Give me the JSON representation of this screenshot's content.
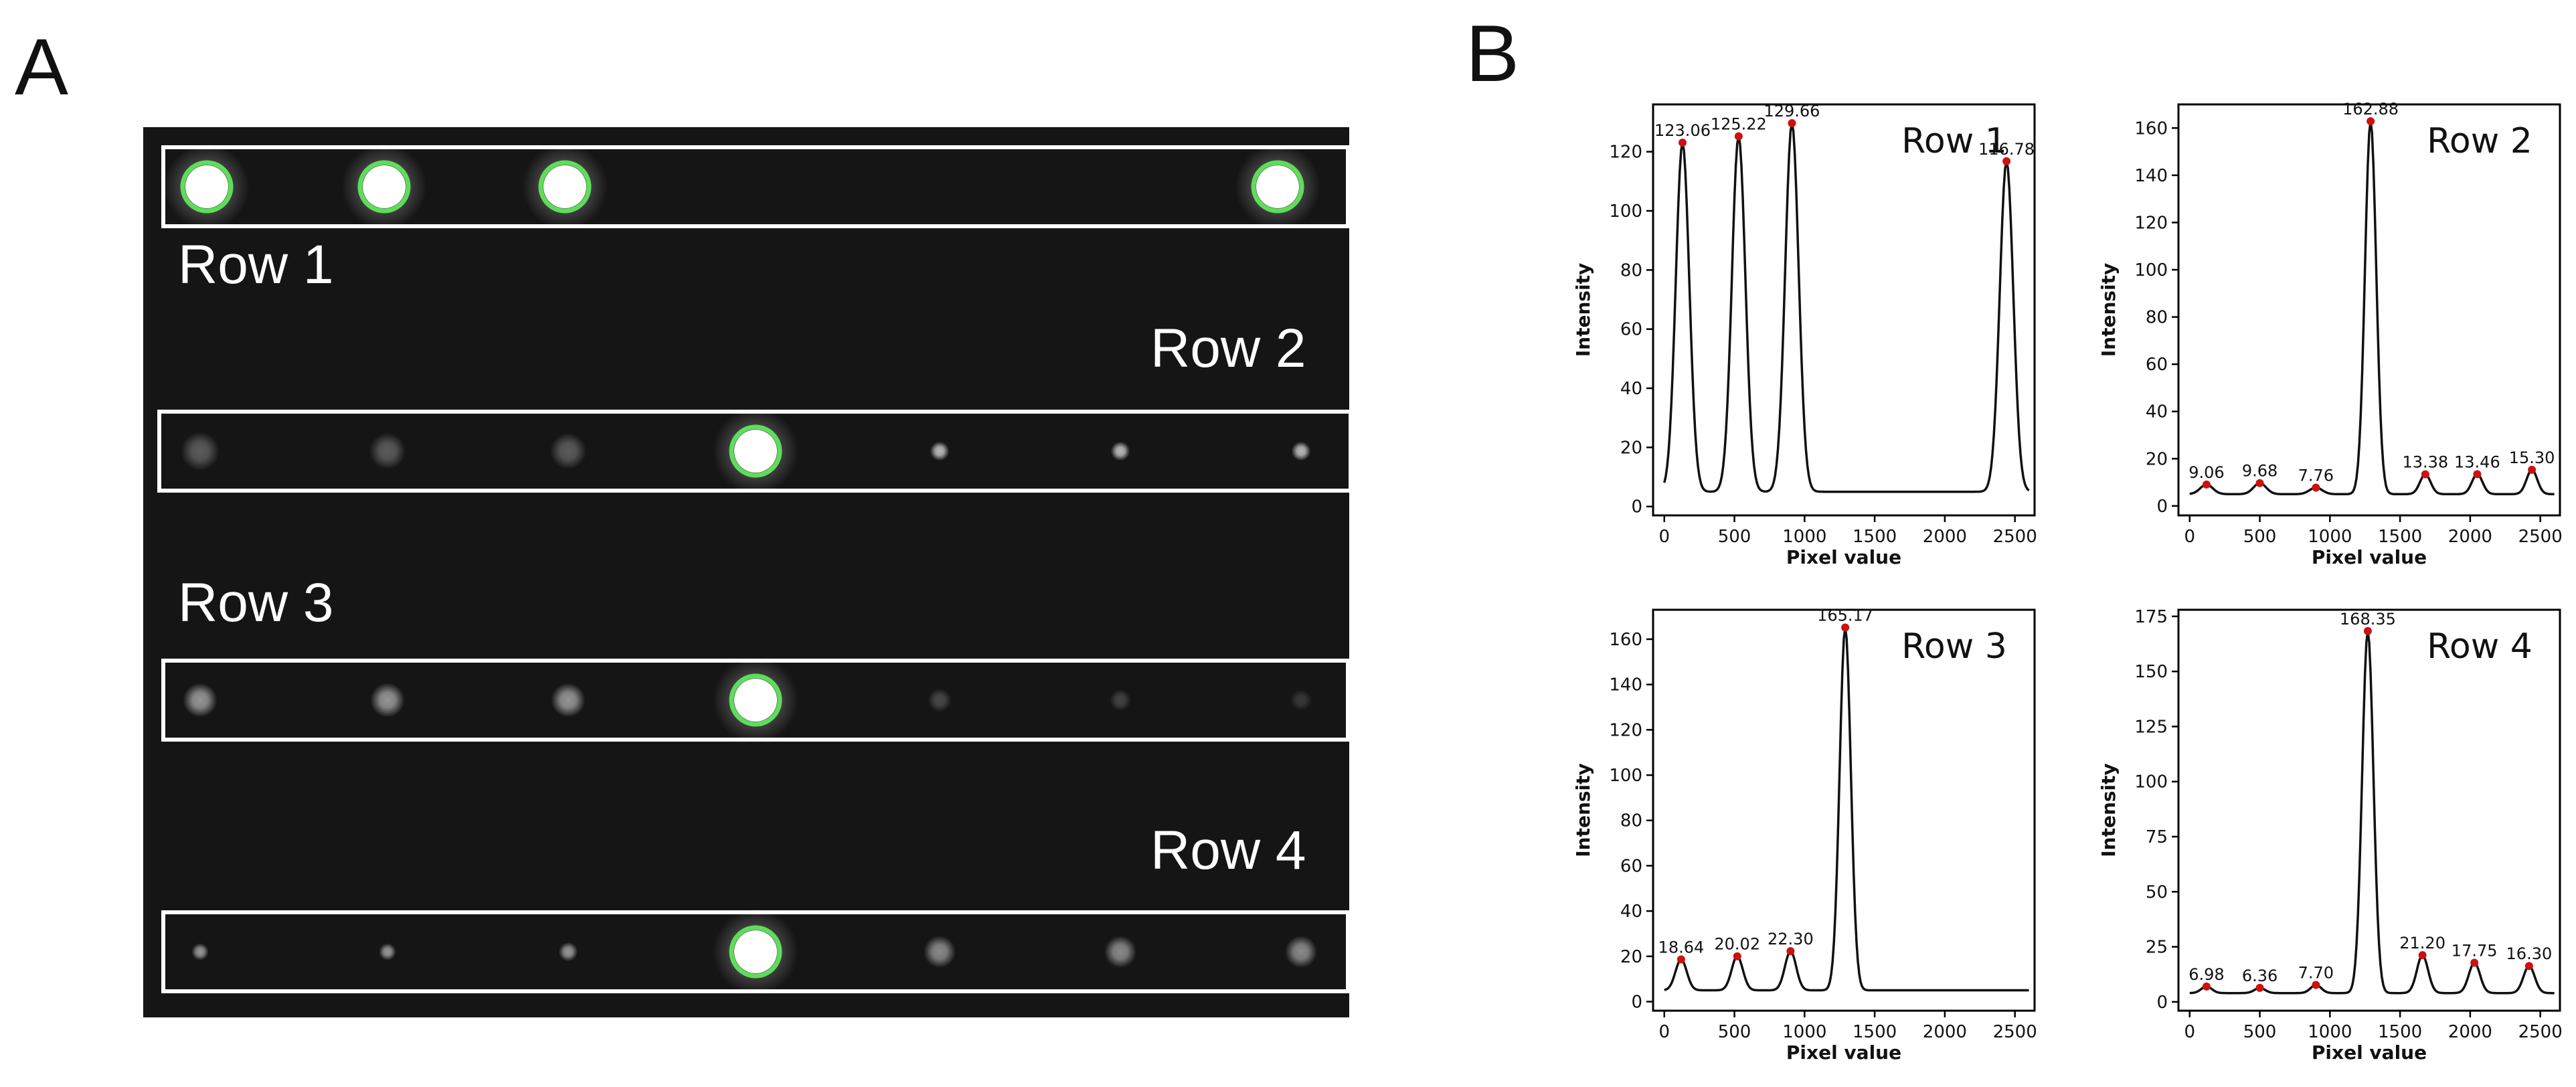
{
  "figure": {
    "panel_a_letter": "A",
    "panel_b_letter": "B"
  },
  "colors": {
    "blot_background": "#151515",
    "row_box": "#ffffff",
    "detected_ring": "#5fdc5a",
    "peak_marker": "#cc1111",
    "line": "#111111"
  },
  "blot": {
    "rows": [
      {
        "label": "Row 1",
        "spots": [
          {
            "intensity": 1.0,
            "size": 1.0,
            "detected": true
          },
          {
            "intensity": 1.0,
            "size": 1.0,
            "detected": true
          },
          {
            "intensity": 1.0,
            "size": 1.0,
            "detected": true
          },
          {
            "intensity": 1.0,
            "size": 1.0,
            "detected": true
          }
        ]
      },
      {
        "label": "Row 2",
        "spots": [
          {
            "intensity": 0.3,
            "size": 0.9,
            "detected": false
          },
          {
            "intensity": 0.3,
            "size": 0.85,
            "detected": false
          },
          {
            "intensity": 0.3,
            "size": 0.85,
            "detected": false
          },
          {
            "intensity": 1.0,
            "size": 1.0,
            "detected": true
          },
          {
            "intensity": 0.7,
            "size": 0.45,
            "detected": false
          },
          {
            "intensity": 0.7,
            "size": 0.45,
            "detected": false
          },
          {
            "intensity": 0.7,
            "size": 0.45,
            "detected": false
          }
        ]
      },
      {
        "label": "Row 3",
        "spots": [
          {
            "intensity": 0.55,
            "size": 0.8,
            "detected": false
          },
          {
            "intensity": 0.55,
            "size": 0.8,
            "detected": false
          },
          {
            "intensity": 0.55,
            "size": 0.8,
            "detected": false
          },
          {
            "intensity": 1.0,
            "size": 1.0,
            "detected": true
          },
          {
            "intensity": 0.22,
            "size": 0.55,
            "detected": false
          },
          {
            "intensity": 0.2,
            "size": 0.5,
            "detected": false
          },
          {
            "intensity": 0.15,
            "size": 0.5,
            "detected": false
          }
        ]
      },
      {
        "label": "Row 4",
        "spots": [
          {
            "intensity": 0.55,
            "size": 0.4,
            "detected": false
          },
          {
            "intensity": 0.55,
            "size": 0.4,
            "detected": false
          },
          {
            "intensity": 0.55,
            "size": 0.45,
            "detected": false
          },
          {
            "intensity": 1.0,
            "size": 1.0,
            "detected": true
          },
          {
            "intensity": 0.5,
            "size": 0.75,
            "detected": false
          },
          {
            "intensity": 0.5,
            "size": 0.75,
            "detected": false
          },
          {
            "intensity": 0.5,
            "size": 0.75,
            "detected": false
          }
        ]
      }
    ]
  },
  "chart_data": [
    {
      "type": "line",
      "title": "Row 1",
      "xlabel": "Pixel value",
      "ylabel": "Intensity",
      "xlim": [
        -80,
        2640
      ],
      "ylim": [
        -3,
        136
      ],
      "xticks": [
        0,
        500,
        1000,
        1500,
        2000,
        2500
      ],
      "yticks": [
        0,
        20,
        40,
        60,
        80,
        100,
        120
      ],
      "baseline": 5,
      "peaks": [
        {
          "x": 130,
          "y": 123.06,
          "label": "123.06",
          "width": 48
        },
        {
          "x": 530,
          "y": 125.22,
          "label": "125.22",
          "width": 48
        },
        {
          "x": 910,
          "y": 129.66,
          "label": "129.66",
          "width": 48
        },
        {
          "x": 2440,
          "y": 116.78,
          "label": "116.78",
          "width": 48
        }
      ]
    },
    {
      "type": "line",
      "title": "Row 2",
      "xlabel": "Pixel value",
      "ylabel": "Intensity",
      "xlim": [
        -80,
        2640
      ],
      "ylim": [
        -4,
        170
      ],
      "xticks": [
        0,
        500,
        1000,
        1500,
        2000,
        2500
      ],
      "yticks": [
        0,
        20,
        40,
        60,
        80,
        100,
        120,
        140,
        160
      ],
      "baseline": 5,
      "peaks": [
        {
          "x": 120,
          "y": 9.06,
          "label": "9.06",
          "width": 45
        },
        {
          "x": 500,
          "y": 9.68,
          "label": "9.68",
          "width": 45
        },
        {
          "x": 900,
          "y": 7.76,
          "label": "7.76",
          "width": 45
        },
        {
          "x": 1290,
          "y": 162.88,
          "label": "162.88",
          "width": 40
        },
        {
          "x": 1680,
          "y": 13.38,
          "label": "13.38",
          "width": 38
        },
        {
          "x": 2050,
          "y": 13.46,
          "label": "13.46",
          "width": 38
        },
        {
          "x": 2440,
          "y": 15.3,
          "label": "15.30",
          "width": 38
        }
      ]
    },
    {
      "type": "line",
      "title": "Row 3",
      "xlabel": "Pixel value",
      "ylabel": "Intensity",
      "xlim": [
        -80,
        2640
      ],
      "ylim": [
        -4,
        173
      ],
      "xticks": [
        0,
        500,
        1000,
        1500,
        2000,
        2500
      ],
      "yticks": [
        0,
        20,
        40,
        60,
        80,
        100,
        120,
        140,
        160
      ],
      "baseline": 5,
      "peaks": [
        {
          "x": 120,
          "y": 18.64,
          "label": "18.64",
          "width": 40
        },
        {
          "x": 520,
          "y": 20.02,
          "label": "20.02",
          "width": 40
        },
        {
          "x": 900,
          "y": 22.3,
          "label": "22.30",
          "width": 40
        },
        {
          "x": 1290,
          "y": 165.17,
          "label": "165.17",
          "width": 40
        }
      ]
    },
    {
      "type": "line",
      "title": "Row 4",
      "xlabel": "Pixel value",
      "ylabel": "Intensity",
      "xlim": [
        -80,
        2640
      ],
      "ylim": [
        -4,
        178
      ],
      "xticks": [
        0,
        500,
        1000,
        1500,
        2000,
        2500
      ],
      "yticks": [
        0,
        25,
        50,
        75,
        100,
        125,
        150,
        175
      ],
      "baseline": 4,
      "peaks": [
        {
          "x": 120,
          "y": 6.98,
          "label": "6.98",
          "width": 38
        },
        {
          "x": 500,
          "y": 6.36,
          "label": "6.36",
          "width": 38
        },
        {
          "x": 900,
          "y": 7.7,
          "label": "7.70",
          "width": 38
        },
        {
          "x": 1270,
          "y": 168.35,
          "label": "168.35",
          "width": 40
        },
        {
          "x": 1660,
          "y": 21.2,
          "label": "21.20",
          "width": 40
        },
        {
          "x": 2030,
          "y": 17.75,
          "label": "17.75",
          "width": 40
        },
        {
          "x": 2420,
          "y": 16.3,
          "label": "16.30",
          "width": 40
        }
      ]
    }
  ]
}
